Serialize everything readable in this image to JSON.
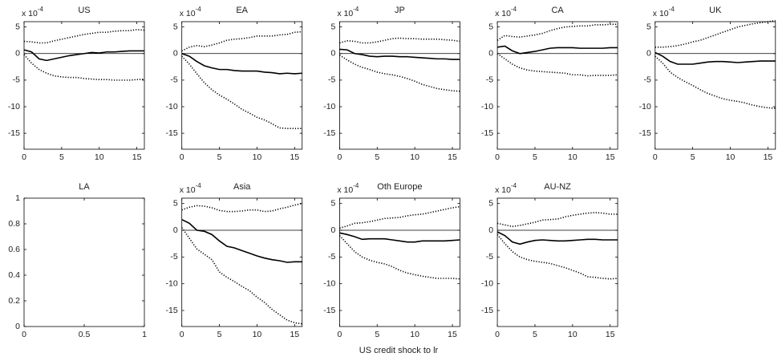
{
  "chart_data": [
    {
      "type": "line",
      "title": "US",
      "y_multiplier": "x 10",
      "y_multiplier_exp": "-4",
      "x": [
        0,
        1,
        2,
        3,
        4,
        5,
        6,
        7,
        8,
        9,
        10,
        11,
        12,
        13,
        14,
        15,
        16
      ],
      "xlim": [
        0,
        16
      ],
      "xticks": [
        0,
        5,
        10,
        15
      ],
      "ylim": [
        -18,
        6
      ],
      "yticks": [
        -15,
        -10,
        -5,
        0,
        5
      ],
      "zero_line": true,
      "series": [
        {
          "style": "solid",
          "color": "#000",
          "values": [
            0.7,
            0.3,
            -1,
            -1.3,
            -1,
            -0.7,
            -0.4,
            -0.2,
            0,
            0.2,
            0.1,
            0.3,
            0.3,
            0.4,
            0.5,
            0.5,
            0.5
          ]
        },
        {
          "style": "dotted",
          "color": "#000",
          "values": [
            2.3,
            2.2,
            2,
            2,
            2.4,
            2.7,
            3,
            3.3,
            3.6,
            3.8,
            4,
            4,
            4.2,
            4.3,
            4.3,
            4.5,
            4.4
          ]
        },
        {
          "style": "dotted",
          "color": "#000",
          "values": [
            -0.2,
            -1.8,
            -3,
            -3.7,
            -4.2,
            -4.4,
            -4.5,
            -4.5,
            -4.7,
            -4.8,
            -4.9,
            -4.9,
            -5,
            -5,
            -5,
            -4.9,
            -4.8
          ]
        }
      ]
    },
    {
      "type": "line",
      "title": "EA",
      "y_multiplier": "x 10",
      "y_multiplier_exp": "-4",
      "x": [
        0,
        1,
        2,
        3,
        4,
        5,
        6,
        7,
        8,
        9,
        10,
        11,
        12,
        13,
        14,
        15,
        16
      ],
      "xlim": [
        0,
        16
      ],
      "xticks": [
        0,
        5,
        10,
        15
      ],
      "ylim": [
        -18,
        6
      ],
      "yticks": [
        -15,
        -10,
        -5,
        0,
        5
      ],
      "zero_line": true,
      "series": [
        {
          "style": "solid",
          "color": "#000",
          "values": [
            0,
            -0.5,
            -1.5,
            -2.3,
            -2.7,
            -3,
            -3,
            -3.2,
            -3.3,
            -3.3,
            -3.3,
            -3.5,
            -3.6,
            -3.8,
            -3.7,
            -3.8,
            -3.7
          ]
        },
        {
          "style": "dotted",
          "color": "#000",
          "values": [
            0.5,
            1.2,
            1.5,
            1.3,
            1.6,
            2,
            2.5,
            2.7,
            2.8,
            3,
            3.3,
            3.3,
            3.3,
            3.5,
            3.6,
            4,
            4.1
          ]
        },
        {
          "style": "dotted",
          "color": "#000",
          "values": [
            -0.5,
            -2,
            -3.8,
            -5.5,
            -6.8,
            -7.8,
            -8.6,
            -9.5,
            -10.5,
            -11.2,
            -12,
            -12.5,
            -13.2,
            -14,
            -14.1,
            -14.1,
            -14.1
          ]
        }
      ]
    },
    {
      "type": "line",
      "title": "JP",
      "y_multiplier": "x 10",
      "y_multiplier_exp": "-4",
      "x": [
        0,
        1,
        2,
        3,
        4,
        5,
        6,
        7,
        8,
        9,
        10,
        11,
        12,
        13,
        14,
        15,
        16
      ],
      "xlim": [
        0,
        16
      ],
      "xticks": [
        0,
        5,
        10,
        15
      ],
      "ylim": [
        -18,
        6
      ],
      "yticks": [
        -15,
        -10,
        -5,
        0,
        5
      ],
      "zero_line": true,
      "series": [
        {
          "style": "solid",
          "color": "#000",
          "values": [
            0.8,
            0.7,
            0,
            -0.2,
            -0.5,
            -0.6,
            -0.5,
            -0.5,
            -0.6,
            -0.6,
            -0.7,
            -0.8,
            -0.9,
            -1,
            -1,
            -1.1,
            -1.1
          ]
        },
        {
          "style": "dotted",
          "color": "#000",
          "values": [
            2,
            2.4,
            2.3,
            2,
            2,
            2.2,
            2.5,
            2.8,
            2.9,
            2.8,
            2.8,
            2.7,
            2.7,
            2.7,
            2.6,
            2.5,
            2.3
          ]
        },
        {
          "style": "dotted",
          "color": "#000",
          "values": [
            -0.3,
            -1.2,
            -2,
            -2.6,
            -3,
            -3.5,
            -3.8,
            -4,
            -4.3,
            -4.7,
            -5.2,
            -5.8,
            -6.2,
            -6.6,
            -6.8,
            -7,
            -7.1
          ]
        }
      ]
    },
    {
      "type": "line",
      "title": "CA",
      "y_multiplier": "x 10",
      "y_multiplier_exp": "-4",
      "x": [
        0,
        1,
        2,
        3,
        4,
        5,
        6,
        7,
        8,
        9,
        10,
        11,
        12,
        13,
        14,
        15,
        16
      ],
      "xlim": [
        0,
        16
      ],
      "xticks": [
        0,
        5,
        10,
        15
      ],
      "ylim": [
        -18,
        6
      ],
      "yticks": [
        -15,
        -10,
        -5,
        0,
        5
      ],
      "zero_line": true,
      "series": [
        {
          "style": "solid",
          "color": "#000",
          "values": [
            1.2,
            1.4,
            0.5,
            0,
            0.2,
            0.4,
            0.7,
            1,
            1.1,
            1.1,
            1.1,
            1,
            1,
            1,
            1,
            1.1,
            1.1
          ]
        },
        {
          "style": "dotted",
          "color": "#000",
          "values": [
            2.5,
            3.4,
            3.2,
            3.1,
            3.3,
            3.5,
            3.8,
            4.3,
            4.7,
            5,
            5.1,
            5.2,
            5.2,
            5.4,
            5.4,
            5.5,
            5.5
          ]
        },
        {
          "style": "dotted",
          "color": "#000",
          "values": [
            0,
            -1,
            -2,
            -2.7,
            -3.1,
            -3.3,
            -3.4,
            -3.5,
            -3.6,
            -3.7,
            -4,
            -4,
            -4.2,
            -4.1,
            -4.1,
            -4.1,
            -4
          ]
        }
      ]
    },
    {
      "type": "line",
      "title": "UK",
      "y_multiplier": "x 10",
      "y_multiplier_exp": "-4",
      "x": [
        0,
        1,
        2,
        3,
        4,
        5,
        6,
        7,
        8,
        9,
        10,
        11,
        12,
        13,
        14,
        15,
        16
      ],
      "xlim": [
        0,
        16
      ],
      "xticks": [
        0,
        5,
        10,
        15
      ],
      "ylim": [
        -18,
        6
      ],
      "yticks": [
        -15,
        -10,
        -5,
        0,
        5
      ],
      "zero_line": true,
      "series": [
        {
          "style": "solid",
          "color": "#000",
          "values": [
            0.2,
            -0.5,
            -1.5,
            -2,
            -2,
            -2,
            -1.8,
            -1.6,
            -1.5,
            -1.5,
            -1.6,
            -1.7,
            -1.6,
            -1.5,
            -1.4,
            -1.4,
            -1.4
          ]
        },
        {
          "style": "dotted",
          "color": "#000",
          "values": [
            1.2,
            1.2,
            1.3,
            1.5,
            1.8,
            2.2,
            2.5,
            3,
            3.5,
            4,
            4.5,
            5,
            5.3,
            5.6,
            5.8,
            6,
            6.2
          ]
        },
        {
          "style": "dotted",
          "color": "#000",
          "values": [
            -0.5,
            -1.8,
            -3.5,
            -4.5,
            -5.3,
            -6,
            -6.8,
            -7.5,
            -8,
            -8.5,
            -8.8,
            -9,
            -9.3,
            -9.7,
            -10,
            -10.2,
            -10.3
          ]
        }
      ]
    },
    {
      "type": "line",
      "title": "LA",
      "xlim": [
        0,
        1
      ],
      "xticks": [
        0,
        0.5,
        1
      ],
      "ylim": [
        0,
        1
      ],
      "yticks": [
        0,
        0.2,
        0.4,
        0.6,
        0.8,
        1
      ],
      "zero_line": false,
      "series": []
    },
    {
      "type": "line",
      "title": "Asia",
      "y_multiplier": "x 10",
      "y_multiplier_exp": "-4",
      "x": [
        0,
        1,
        2,
        3,
        4,
        5,
        6,
        7,
        8,
        9,
        10,
        11,
        12,
        13,
        14,
        15,
        16
      ],
      "xlim": [
        0,
        16
      ],
      "xticks": [
        0,
        5,
        10,
        15
      ],
      "ylim": [
        -18,
        6
      ],
      "yticks": [
        -15,
        -10,
        -5,
        0,
        5
      ],
      "zero_line": true,
      "series": [
        {
          "style": "solid",
          "color": "#000",
          "values": [
            2,
            1.3,
            0,
            -0.2,
            -0.8,
            -2,
            -3,
            -3.3,
            -3.8,
            -4.3,
            -4.8,
            -5.2,
            -5.5,
            -5.7,
            -6,
            -5.9,
            -5.9
          ]
        },
        {
          "style": "dotted",
          "color": "#000",
          "values": [
            3.8,
            4.3,
            4.6,
            4.5,
            4.2,
            3.7,
            3.5,
            3.5,
            3.6,
            3.8,
            3.8,
            3.5,
            3.6,
            4,
            4.3,
            4.7,
            5
          ]
        },
        {
          "style": "dotted",
          "color": "#000",
          "values": [
            0.5,
            -1.5,
            -3.5,
            -4.5,
            -5.5,
            -7.8,
            -8.8,
            -9.6,
            -10.5,
            -11.3,
            -12.5,
            -13.5,
            -14.8,
            -15.8,
            -16.8,
            -17.3,
            -17.5
          ]
        }
      ]
    },
    {
      "type": "line",
      "title": "Oth Europe",
      "y_multiplier": "x 10",
      "y_multiplier_exp": "-4",
      "x": [
        0,
        1,
        2,
        3,
        4,
        5,
        6,
        7,
        8,
        9,
        10,
        11,
        12,
        13,
        14,
        15,
        16
      ],
      "xlim": [
        0,
        16
      ],
      "xticks": [
        0,
        5,
        10,
        15
      ],
      "ylim": [
        -18,
        6
      ],
      "yticks": [
        -15,
        -10,
        -5,
        0,
        5
      ],
      "zero_line": true,
      "series": [
        {
          "style": "solid",
          "color": "#000",
          "values": [
            -0.5,
            -0.8,
            -1.2,
            -1.7,
            -1.6,
            -1.6,
            -1.6,
            -1.8,
            -2,
            -2.2,
            -2.2,
            -2,
            -2,
            -2,
            -2,
            -1.9,
            -1.8
          ]
        },
        {
          "style": "dotted",
          "color": "#000",
          "values": [
            0.4,
            0.8,
            1.3,
            1.4,
            1.6,
            1.9,
            2.2,
            2.3,
            2.4,
            2.7,
            2.9,
            3,
            3.3,
            3.6,
            3.9,
            4.2,
            4.4
          ]
        },
        {
          "style": "dotted",
          "color": "#000",
          "values": [
            -1,
            -2.5,
            -4,
            -5,
            -5.6,
            -6,
            -6.3,
            -6.8,
            -7.5,
            -8,
            -8.3,
            -8.6,
            -8.8,
            -9,
            -9,
            -9,
            -9.1
          ]
        }
      ]
    },
    {
      "type": "line",
      "title": "AU-NZ",
      "y_multiplier": "x 10",
      "y_multiplier_exp": "-4",
      "x": [
        0,
        1,
        2,
        3,
        4,
        5,
        6,
        7,
        8,
        9,
        10,
        11,
        12,
        13,
        14,
        15,
        16
      ],
      "xlim": [
        0,
        16
      ],
      "xticks": [
        0,
        5,
        10,
        15
      ],
      "ylim": [
        -18,
        6
      ],
      "yticks": [
        -15,
        -10,
        -5,
        0,
        5
      ],
      "zero_line": true,
      "series": [
        {
          "style": "solid",
          "color": "#000",
          "values": [
            -0.3,
            -1,
            -2.2,
            -2.6,
            -2.2,
            -1.9,
            -1.8,
            -1.9,
            -2,
            -2,
            -1.9,
            -1.8,
            -1.7,
            -1.7,
            -1.8,
            -1.8,
            -1.8
          ]
        },
        {
          "style": "dotted",
          "color": "#000",
          "values": [
            1.3,
            1,
            0.7,
            0.9,
            1.2,
            1.5,
            1.9,
            2,
            2.1,
            2.5,
            2.8,
            3,
            3.2,
            3.3,
            3.2,
            3,
            3
          ]
        },
        {
          "style": "dotted",
          "color": "#000",
          "values": [
            -0.8,
            -2.5,
            -4,
            -5,
            -5.5,
            -5.8,
            -6,
            -6.2,
            -6.6,
            -7,
            -7.5,
            -8,
            -8.7,
            -8.8,
            -9,
            -9.1,
            -9
          ]
        }
      ]
    }
  ],
  "xlabel": "US credit shock to lr"
}
